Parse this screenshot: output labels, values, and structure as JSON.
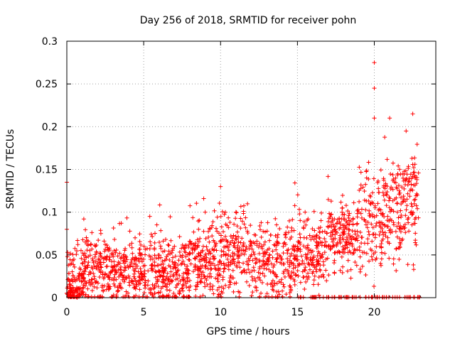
{
  "chart_data": {
    "type": "scatter",
    "title": "Day 256 of 2018, SRMTID for receiver pohn",
    "xlabel": "GPS time / hours",
    "ylabel": "SRMTID / TECUs",
    "xlim": [
      0,
      24
    ],
    "ylim": [
      0,
      0.3
    ],
    "x_ticks": [
      0,
      5,
      10,
      15,
      20
    ],
    "x_tick_labels": [
      "0",
      "5",
      "10",
      "15",
      "20"
    ],
    "y_ticks": [
      0,
      0.05,
      0.1,
      0.15,
      0.2,
      0.25,
      0.3
    ],
    "y_tick_labels": [
      "0",
      "0.05",
      "0.1",
      "0.15",
      "0.2",
      "0.25",
      "0.3"
    ],
    "grid": true,
    "marker": "plus",
    "color": "#ff0000",
    "series": [
      {
        "name": "SRMTID",
        "sample_points": [
          [
            0.0,
            0.135
          ],
          [
            0.0,
            0.08
          ],
          [
            0.05,
            0.053
          ],
          [
            0.1,
            0.038
          ],
          [
            0.2,
            0.02
          ],
          [
            0.3,
            0.01
          ],
          [
            0.5,
            0.005
          ],
          [
            0.8,
            0.002
          ],
          [
            1.2,
            0.065
          ],
          [
            1.5,
            0.03
          ],
          [
            2.0,
            0.04
          ],
          [
            3.0,
            0.05
          ],
          [
            4.0,
            0.035
          ],
          [
            5.0,
            0.045
          ],
          [
            6.0,
            0.03
          ],
          [
            7.0,
            0.06
          ],
          [
            8.0,
            0.02
          ],
          [
            8.5,
            0.06
          ],
          [
            9.0,
            0.1
          ],
          [
            9.5,
            0.04
          ],
          [
            10.0,
            0.13
          ],
          [
            10.5,
            0.05
          ],
          [
            11.0,
            0.1
          ],
          [
            12.0,
            0.05
          ],
          [
            13.0,
            0.04
          ],
          [
            14.0,
            0.045
          ],
          [
            15.0,
            0.06
          ],
          [
            15.5,
            0.1
          ],
          [
            16.0,
            0.045
          ],
          [
            17.0,
            0.06
          ],
          [
            18.0,
            0.08
          ],
          [
            19.0,
            0.1
          ],
          [
            19.5,
            0.14
          ],
          [
            20.0,
            0.275
          ],
          [
            20.0,
            0.245
          ],
          [
            20.0,
            0.21
          ],
          [
            21.0,
            0.21
          ],
          [
            21.5,
            0.1
          ],
          [
            22.5,
            0.215
          ],
          [
            22.8,
            0.12
          ]
        ]
      }
    ]
  }
}
